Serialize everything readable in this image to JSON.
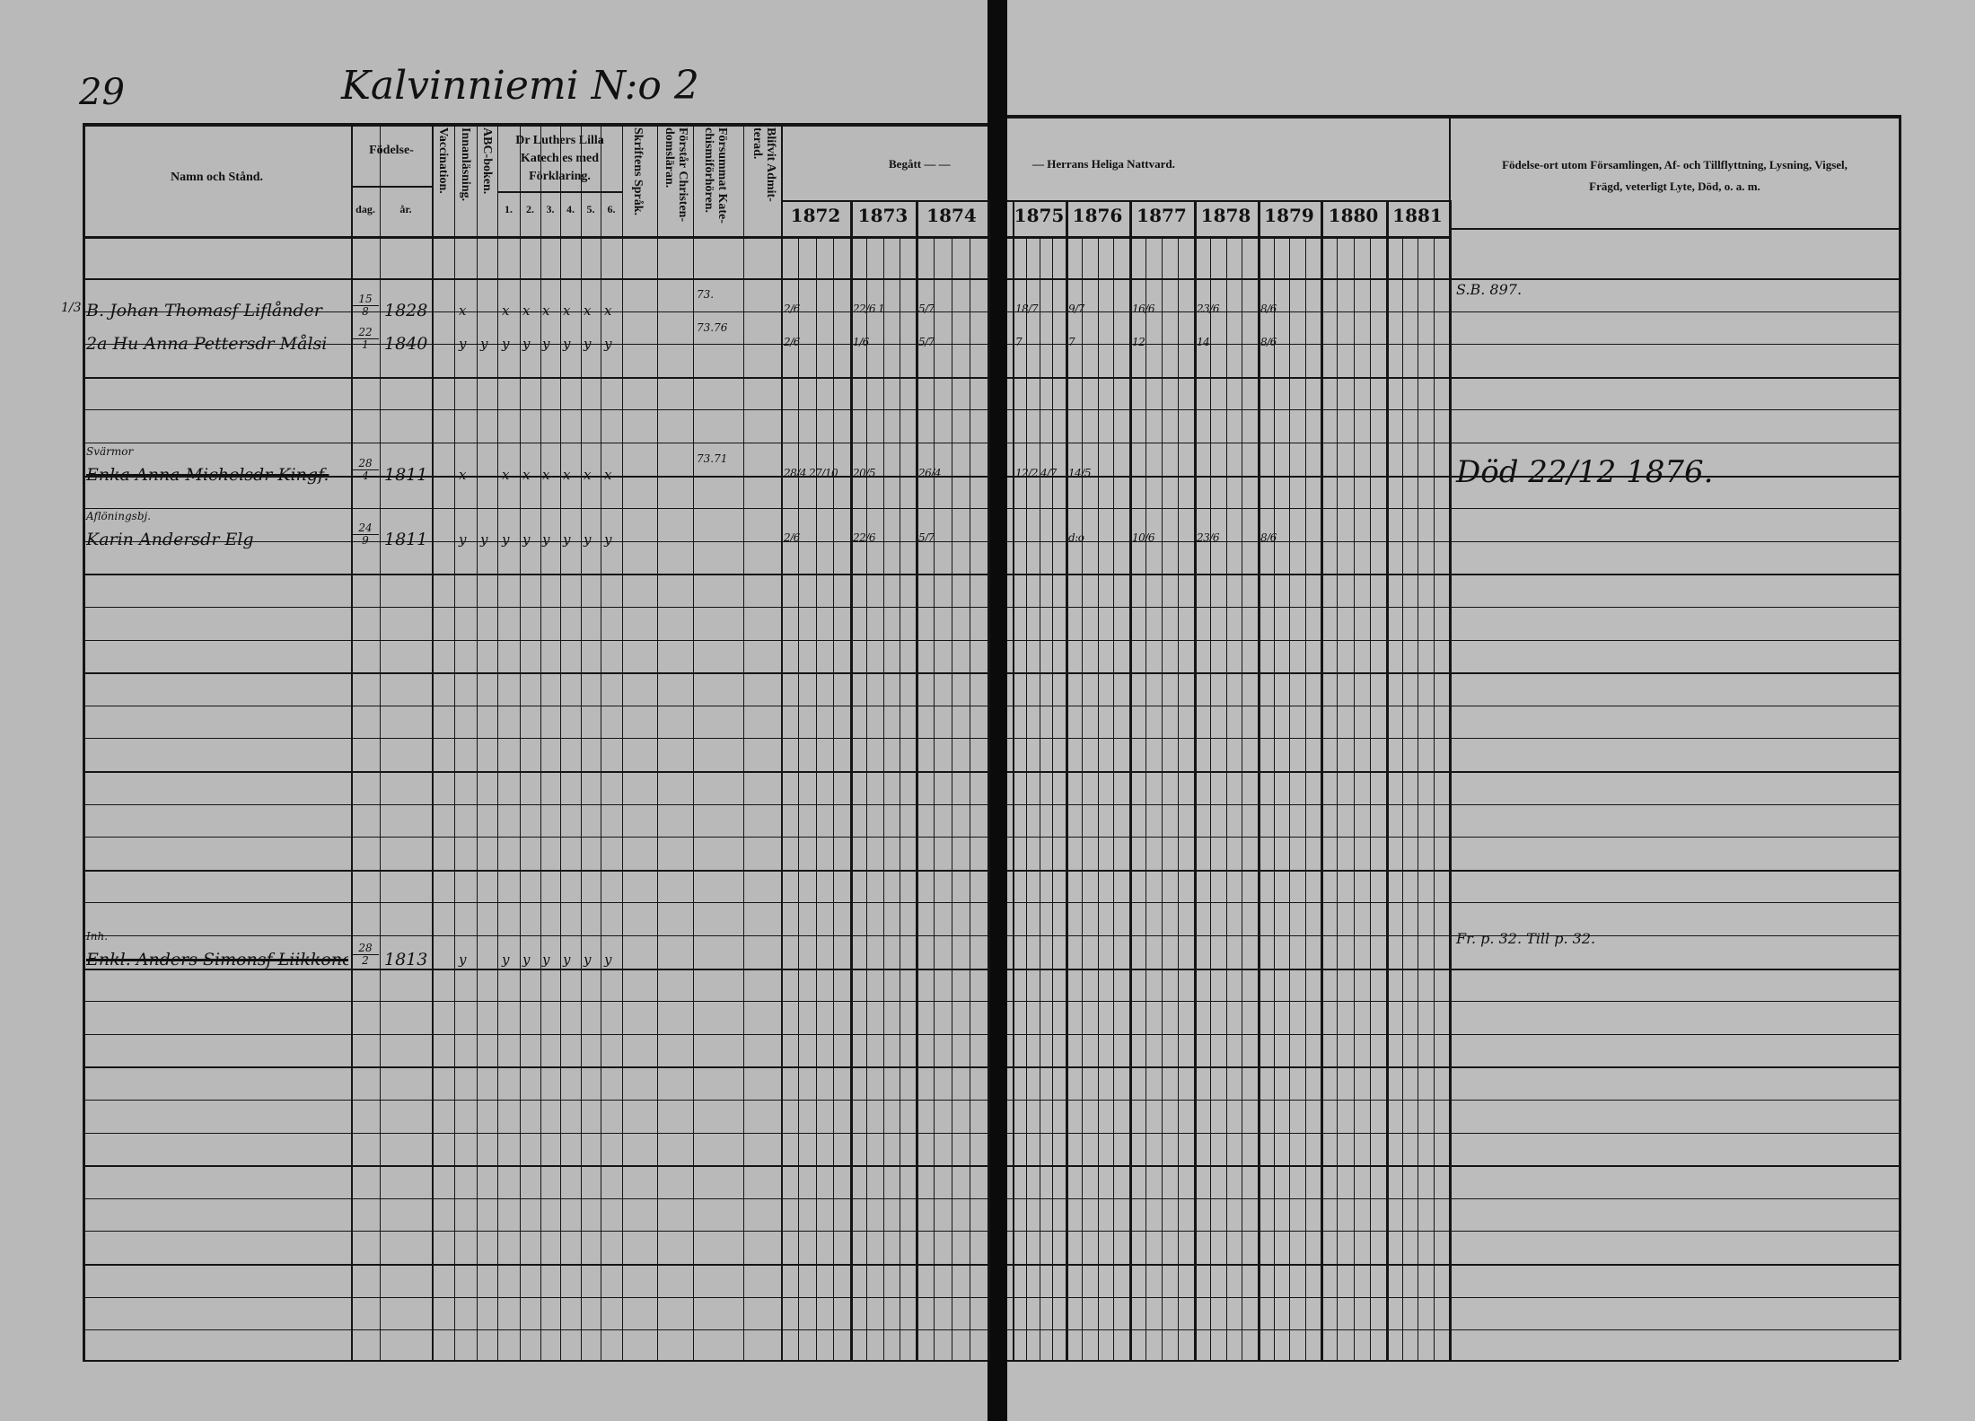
{
  "page_number": "29",
  "farm_title": "Kalvinniemi N:o 2",
  "headers": {
    "name": "Namn och Stånd.",
    "birth": "Födelse-",
    "birth_day": "dag.",
    "birth_year": "år.",
    "vaccination": "Vaccination.",
    "reading": "Innanläsning.",
    "abc": "ABC-boken.",
    "catechism": [
      "Dr Luthers Lilla",
      "Katech es med",
      "Förklaring."
    ],
    "catechism_parts": [
      "1.",
      "2.",
      "3.",
      "4.",
      "5.",
      "6."
    ],
    "scripture": "Skriftens Språk.",
    "understands": "Förstår Christen-domsläran.",
    "missed": "Försummat Kate-chismiförhören.",
    "admitted": "Blifvit Admit-terad.",
    "communion_left": "Begått — —",
    "communion_right": "— Herrans Heliga Nattvard.",
    "notes": [
      "Födelse-ort utom Församlingen, Af- och Tillflyttning, Lysning, Vigsel,",
      "Frägd, veterligt Lyte, Död, o. a. m."
    ],
    "years": [
      "1872",
      "1873",
      "1874",
      "1875",
      "1876",
      "1877",
      "1878",
      "1879",
      "1880",
      "1881"
    ]
  },
  "entries": [
    {
      "margin": "1/3",
      "label": "",
      "name": "B. Johan Thomasf Liflånder",
      "struck": false,
      "day": [
        "15",
        "8"
      ],
      "year": "1828",
      "marks": [
        "x",
        "",
        "x",
        "x",
        "x",
        "x",
        "x",
        "x"
      ],
      "missed": "73.",
      "communion": {
        "1872": [
          "2/6"
        ],
        "1873": [
          "22/6",
          "1"
        ],
        "1874": [
          "5/7"
        ],
        "1875": [
          "18/7"
        ],
        "1876": [
          "9/7"
        ],
        "1877": [
          "16/6"
        ],
        "1878": [
          "23/6"
        ],
        "1879": [
          "8/6"
        ]
      },
      "note": "S.B. 897."
    },
    {
      "margin": "",
      "label": "",
      "name": "2a Hu Anna Pettersdr Målsi",
      "struck": false,
      "day": [
        "22",
        "1"
      ],
      "year": "1840",
      "marks": [
        "y",
        "y",
        "y",
        "y",
        "y",
        "y",
        "y",
        "y"
      ],
      "missed": "73.76",
      "communion": {
        "1872": [
          "2/6"
        ],
        "1873": [
          "1/6"
        ],
        "1874": [
          "5/7"
        ],
        "1875": [
          "7"
        ],
        "1876": [
          "7"
        ],
        "1877": [
          "12"
        ],
        "1878": [
          "14"
        ],
        "1879": [
          "8/6"
        ]
      },
      "note": ""
    },
    {
      "margin": "",
      "label": "Svärmor",
      "name": "Enka Anna Michelsdr Kingf.",
      "struck": true,
      "day": [
        "28",
        "4"
      ],
      "year": "1811",
      "marks": [
        "x",
        "",
        "x",
        "x",
        "x",
        "x",
        "x",
        "x"
      ],
      "missed": "73.71",
      "communion": {
        "1872": [
          "28/4",
          "27/10"
        ],
        "1873": [
          "20/5"
        ],
        "1874": [
          "26/4"
        ],
        "1875": [
          "12/2",
          "4/7"
        ],
        "1876": [
          "14/5"
        ]
      },
      "note": "Död 22/12 1876."
    },
    {
      "margin": "",
      "label": "Aflöningsbj.",
      "name": "Karin Andersdr Elg",
      "struck": false,
      "day": [
        "24",
        "9"
      ],
      "year": "1811",
      "marks": [
        "y",
        "y",
        "y",
        "y",
        "y",
        "y",
        "y",
        "y"
      ],
      "missed": "",
      "communion": {
        "1872": [
          "2/6"
        ],
        "1873": [
          "22/6"
        ],
        "1874": [
          "5/7"
        ],
        "1876": [
          "d:o"
        ],
        "1877": [
          "10/6"
        ],
        "1878": [
          "23/6"
        ],
        "1879": [
          "8/6"
        ]
      },
      "note": ""
    },
    {
      "margin": "",
      "label": "Inh.",
      "name": "Enkl. Anders Simonsf Liikkonen",
      "struck": true,
      "day": [
        "28",
        "2"
      ],
      "year": "1813",
      "marks": [
        "y",
        "",
        "y",
        "y",
        "y",
        "y",
        "y",
        "y"
      ],
      "missed": "",
      "communion": {},
      "note": "Fr. p. 32. Till p. 32."
    }
  ]
}
